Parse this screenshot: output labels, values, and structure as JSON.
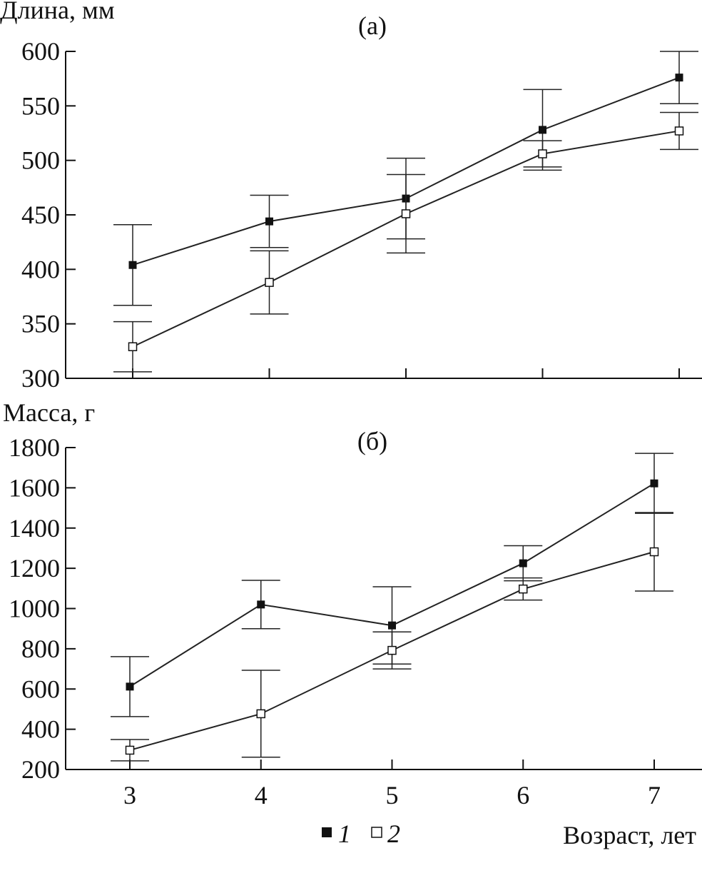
{
  "chart_data": [
    {
      "type": "line",
      "panel_label": "(а)",
      "ylabel": "Длина, мм",
      "xlabel": "",
      "x": [
        3,
        4,
        5,
        6,
        7
      ],
      "xlim": [
        2.5,
        7.5
      ],
      "ylim": [
        300,
        600
      ],
      "yticks": [
        300,
        350,
        400,
        450,
        500,
        550,
        600
      ],
      "error_bars": true,
      "grid": false,
      "series": [
        {
          "name": "1",
          "marker": "filled-square",
          "values": [
            404,
            444,
            465,
            528,
            576
          ],
          "errors": [
            37,
            24,
            37,
            37,
            24
          ]
        },
        {
          "name": "2",
          "marker": "open-square",
          "values": [
            329,
            388,
            451,
            506,
            527
          ],
          "errors": [
            23,
            29,
            36,
            12,
            17
          ]
        }
      ]
    },
    {
      "type": "line",
      "panel_label": "(б)",
      "ylabel": "Масса, г",
      "xlabel": "Возраст, лет",
      "x": [
        3,
        4,
        5,
        6,
        7
      ],
      "xticks": [
        "3",
        "4",
        "5",
        "6",
        "7"
      ],
      "xlim": [
        2.5,
        7.5
      ],
      "ylim": [
        200,
        1800
      ],
      "yticks": [
        200,
        400,
        600,
        800,
        1000,
        1200,
        1400,
        1600,
        1800
      ],
      "error_bars": true,
      "grid": false,
      "legend": {
        "placement": "bottom",
        "entries": [
          "1",
          "2"
        ]
      },
      "series": [
        {
          "name": "1",
          "marker": "filled-square",
          "values": [
            612,
            1020,
            916,
            1225,
            1622
          ],
          "errors": [
            149,
            120,
            192,
            87,
            149
          ]
        },
        {
          "name": "2",
          "marker": "open-square",
          "values": [
            296,
            477,
            792,
            1097,
            1282
          ],
          "errors": [
            53,
            216,
            92,
            55,
            195
          ]
        }
      ]
    }
  ]
}
